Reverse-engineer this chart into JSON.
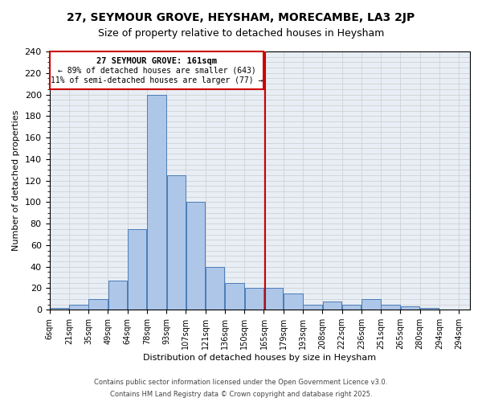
{
  "title": "27, SEYMOUR GROVE, HEYSHAM, MORECAMBE, LA3 2JP",
  "subtitle": "Size of property relative to detached houses in Heysham",
  "xlabel": "Distribution of detached houses by size in Heysham",
  "ylabel": "Number of detached properties",
  "categories": [
    "6sqm",
    "21sqm",
    "35sqm",
    "49sqm",
    "64sqm",
    "78sqm",
    "93sqm",
    "107sqm",
    "121sqm",
    "136sqm",
    "150sqm",
    "165sqm",
    "179sqm",
    "193sqm",
    "208sqm",
    "222sqm",
    "236sqm",
    "251sqm",
    "265sqm",
    "280sqm",
    "294sqm"
  ],
  "values": [
    2,
    5,
    10,
    27,
    75,
    200,
    125,
    100,
    40,
    25,
    20,
    20,
    15,
    5,
    8,
    5,
    10,
    5,
    3,
    2
  ],
  "bar_color": "#aec6e8",
  "bar_edge_color": "#4a7db5",
  "vline_x": 161,
  "vline_color": "#cc0000",
  "annotation_title": "27 SEYMOUR GROVE: 161sqm",
  "annotation_line2": "← 89% of detached houses are smaller (643)",
  "annotation_line3": "11% of semi-detached houses are larger (77) →",
  "annotation_box_color": "#cc0000",
  "annotation_bg": "#ffffff",
  "ylim": [
    0,
    240
  ],
  "yticks": [
    0,
    20,
    40,
    60,
    80,
    100,
    120,
    140,
    160,
    180,
    200,
    220,
    240
  ],
  "grid_color": "#cccccc",
  "background_color": "#e8eef5",
  "footer_line1": "Contains HM Land Registry data © Crown copyright and database right 2025.",
  "footer_line2": "Contains public sector information licensed under the Open Government Licence v3.0.",
  "bin_width": 14,
  "bin_starts": [
    6,
    20,
    34,
    48,
    62,
    76,
    90,
    104,
    118,
    132,
    146,
    160,
    174,
    188,
    202,
    216,
    230,
    244,
    258,
    272,
    286
  ]
}
